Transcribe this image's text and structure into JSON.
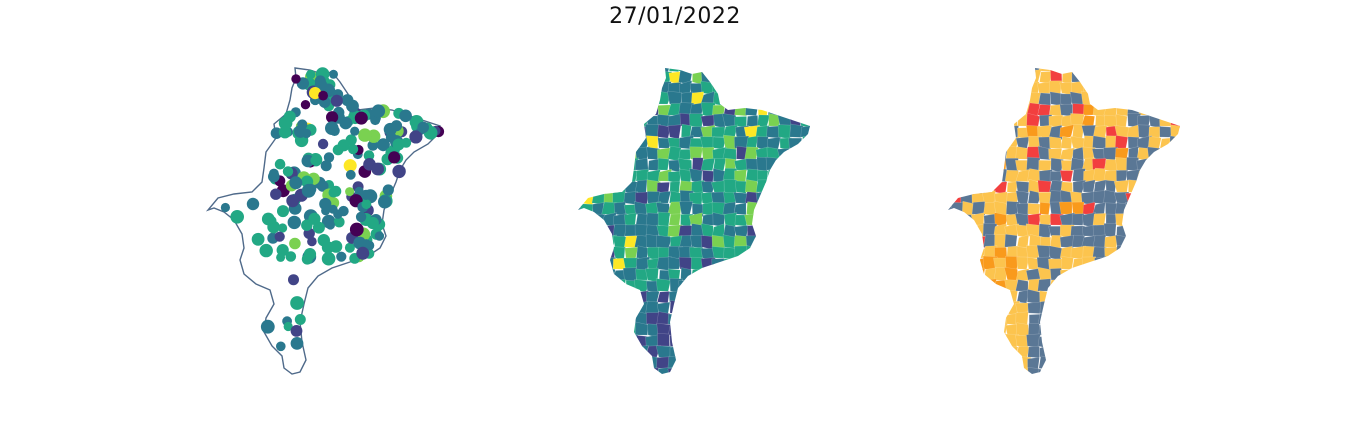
{
  "title": "27/01/2022",
  "colors": {
    "outline": "#4f6a8a",
    "viridis": [
      "#440154",
      "#414487",
      "#2a788e",
      "#22a884",
      "#7ad151",
      "#fde725"
    ],
    "risk_blue": "#5a7795",
    "risk_yellow": "#fcc44e",
    "risk_orange": "#f99a1c",
    "risk_red": "#f23f3f"
  },
  "panels": [
    {
      "name": "points-map",
      "kind": "points"
    },
    {
      "name": "choropleth-viridis",
      "kind": "choropleth"
    },
    {
      "name": "choropleth-risk",
      "kind": "risk"
    }
  ]
}
